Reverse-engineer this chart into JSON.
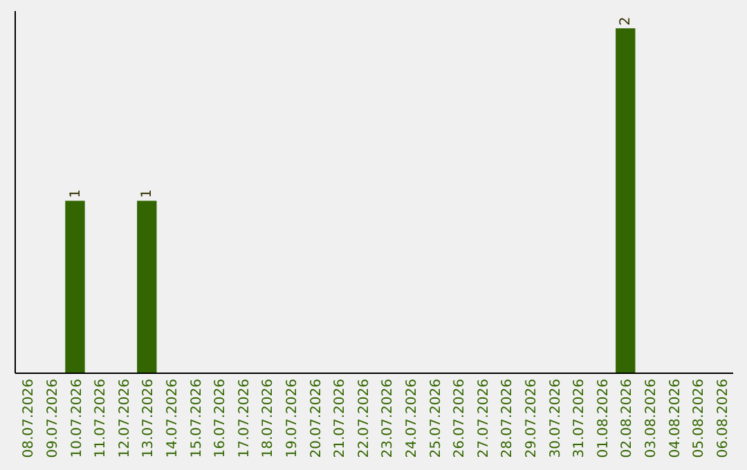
{
  "chart_data": {
    "type": "bar",
    "categories": [
      "08.07.2026",
      "09.07.2026",
      "10.07.2026",
      "11.07.2026",
      "12.07.2026",
      "13.07.2026",
      "14.07.2026",
      "15.07.2026",
      "16.07.2026",
      "17.07.2026",
      "18.07.2026",
      "19.07.2026",
      "20.07.2026",
      "21.07.2026",
      "22.07.2026",
      "23.07.2026",
      "24.07.2026",
      "25.07.2026",
      "26.07.2026",
      "27.07.2026",
      "28.07.2026",
      "29.07.2026",
      "30.07.2026",
      "31.07.2026",
      "01.08.2026",
      "02.08.2026",
      "03.08.2026",
      "04.08.2026",
      "05.08.2026",
      "06.08.2026"
    ],
    "values": [
      0,
      0,
      1,
      0,
      0,
      1,
      0,
      0,
      0,
      0,
      0,
      0,
      0,
      0,
      0,
      0,
      0,
      0,
      0,
      0,
      0,
      0,
      0,
      0,
      0,
      2,
      0,
      0,
      0,
      0
    ],
    "value_labels": [
      null,
      null,
      "1",
      null,
      null,
      "1",
      null,
      null,
      null,
      null,
      null,
      null,
      null,
      null,
      null,
      null,
      null,
      null,
      null,
      null,
      null,
      null,
      null,
      null,
      null,
      "2",
      null,
      null,
      null,
      null
    ],
    "color": "#336600",
    "ylim": [
      0,
      2.1
    ],
    "tick_labels": "x"
  }
}
